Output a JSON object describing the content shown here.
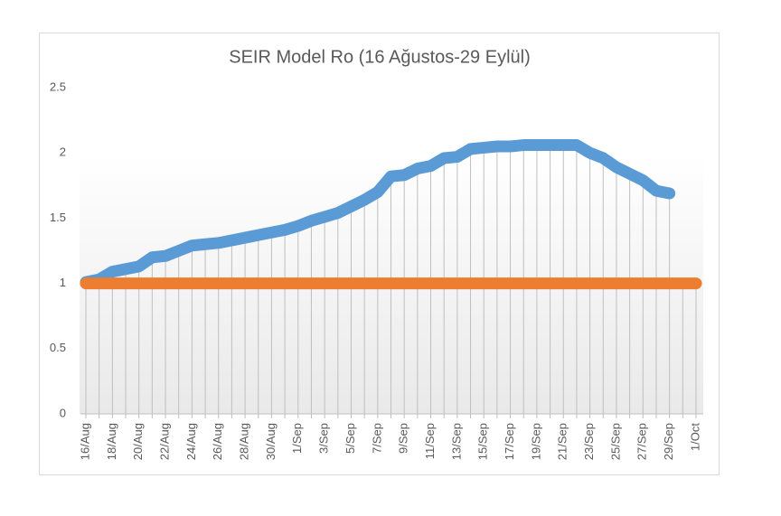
{
  "chart_data": {
    "type": "line",
    "title": "SEIR Model Ro (16 Ağustos-29 Eylül)",
    "categories": [
      "16/Aug",
      null,
      "18/Aug",
      null,
      "20/Aug",
      null,
      "22/Aug",
      null,
      "24/Aug",
      null,
      "26/Aug",
      null,
      "28/Aug",
      null,
      "30/Aug",
      null,
      "1/Sep",
      null,
      "3/Sep",
      null,
      "5/Sep",
      null,
      "7/Sep",
      null,
      "9/Sep",
      null,
      "11/Sep",
      null,
      "13/Sep",
      null,
      "15/Sep",
      null,
      "17/Sep",
      null,
      "19/Sep",
      null,
      "21/Sep",
      null,
      "23/Sep",
      null,
      "25/Sep",
      null,
      "27/Sep",
      null,
      "29/Sep",
      null,
      "1/Oct"
    ],
    "series": [
      {
        "color": "#5b9bd5",
        "values": [
          1.01,
          1.03,
          1.09,
          1.11,
          1.13,
          1.2,
          1.21,
          1.25,
          1.29,
          1.3,
          1.31,
          1.33,
          1.35,
          1.37,
          1.39,
          1.41,
          1.44,
          1.48,
          1.51,
          1.54,
          1.59,
          1.64,
          1.7,
          1.82,
          1.83,
          1.88,
          1.9,
          1.96,
          1.97,
          2.03,
          2.04,
          2.05,
          2.05,
          2.06,
          2.06,
          2.06,
          2.06,
          2.06,
          2.0,
          1.96,
          1.89,
          1.84,
          1.79,
          1.71,
          1.69,
          null,
          null
        ]
      },
      {
        "color": "#ed7d31",
        "values": [
          1,
          1,
          1,
          1,
          1,
          1,
          1,
          1,
          1,
          1,
          1,
          1,
          1,
          1,
          1,
          1,
          1,
          1,
          1,
          1,
          1,
          1,
          1,
          1,
          1,
          1,
          1,
          1,
          1,
          1,
          1,
          1,
          1,
          1,
          1,
          1,
          1,
          1,
          1,
          1,
          1,
          1,
          1,
          1,
          1,
          1,
          1
        ]
      }
    ],
    "ylim": [
      0,
      2.5
    ],
    "yticks": [
      0,
      0.5,
      1,
      1.5,
      2,
      2.5
    ],
    "drop_lines": true
  }
}
